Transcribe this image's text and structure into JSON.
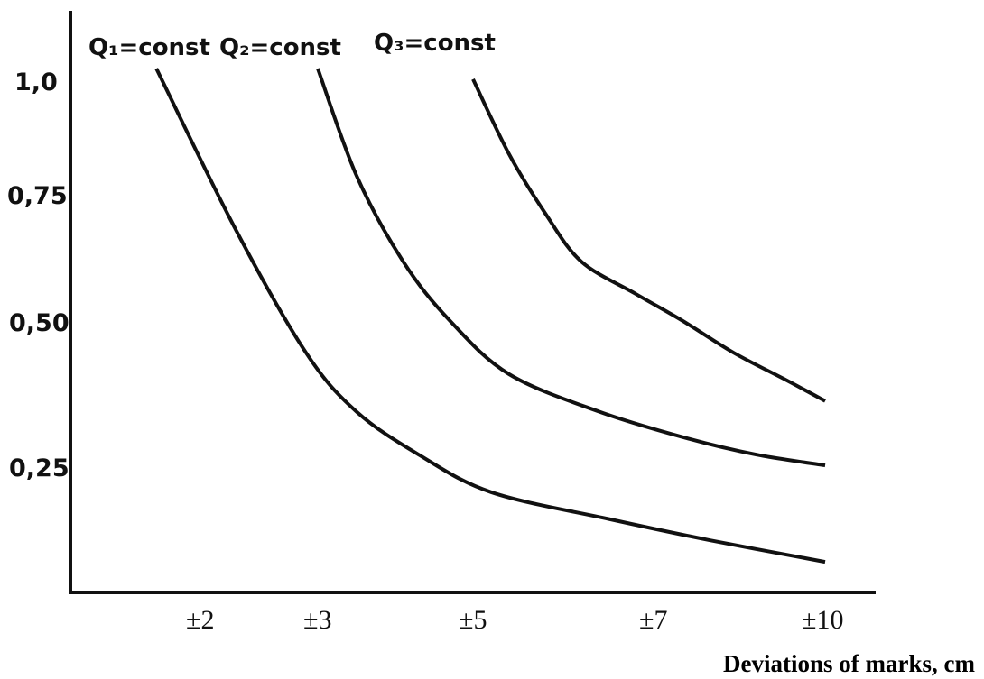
{
  "chart_data": {
    "type": "line",
    "title": "",
    "xlabel": "Deviations of marks, cm",
    "ylabel": "",
    "x_tick_labels": [
      "±2",
      "±3",
      "±5",
      "±7",
      "±10"
    ],
    "y_tick_labels": [
      "1,0",
      "0,75",
      "0,50",
      "0,25"
    ],
    "y_ticks": [
      1.0,
      0.75,
      0.5,
      0.25
    ],
    "ylim": [
      0,
      1.1
    ],
    "grid": false,
    "series": [
      {
        "name": "Q₁=const",
        "points": [
          [
            1.6,
            1.0
          ],
          [
            2.3,
            0.7
          ],
          [
            2.9,
            0.47
          ],
          [
            3.5,
            0.36
          ],
          [
            4.3,
            0.28
          ],
          [
            5.2,
            0.21
          ],
          [
            6.5,
            0.16
          ],
          [
            8.0,
            0.12
          ],
          [
            10.0,
            0.08
          ]
        ]
      },
      {
        "name": "Q₂=const",
        "points": [
          [
            3.0,
            1.0
          ],
          [
            3.5,
            0.8
          ],
          [
            4.1,
            0.64
          ],
          [
            4.7,
            0.53
          ],
          [
            5.4,
            0.43
          ],
          [
            6.4,
            0.36
          ],
          [
            7.6,
            0.31
          ],
          [
            8.8,
            0.28
          ],
          [
            10.0,
            0.26
          ]
        ]
      },
      {
        "name": "Q₃=const",
        "points": [
          [
            5.0,
            0.98
          ],
          [
            5.4,
            0.84
          ],
          [
            5.8,
            0.73
          ],
          [
            6.2,
            0.64
          ],
          [
            6.8,
            0.58
          ],
          [
            7.5,
            0.53
          ],
          [
            8.4,
            0.47
          ],
          [
            9.3,
            0.42
          ],
          [
            10.0,
            0.38
          ]
        ]
      }
    ]
  },
  "colors": {
    "line": "#111111",
    "axis": "#111111",
    "background": "#ffffff"
  }
}
